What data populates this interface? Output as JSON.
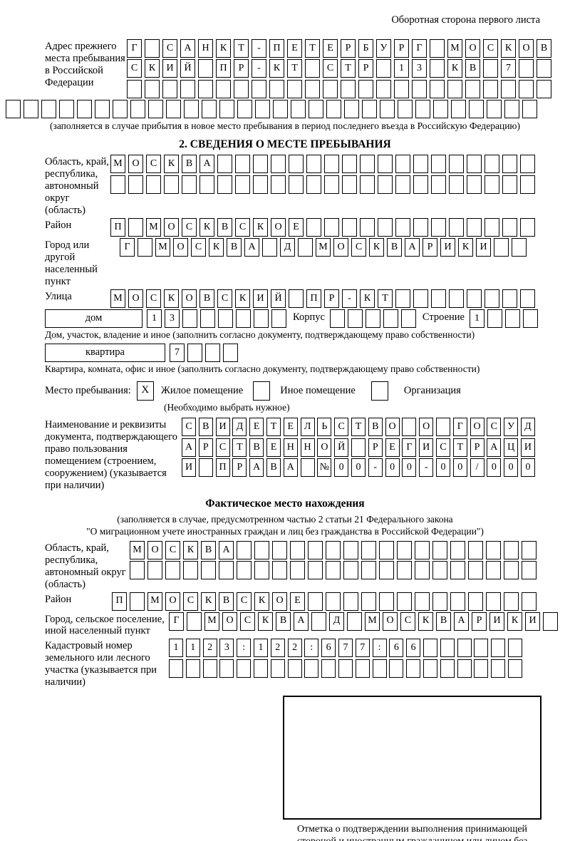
{
  "header": {
    "corner_note": "Оборотная сторона первого листа"
  },
  "prev_address": {
    "label": "Адрес прежнего места пребывания в Российской Федерации",
    "row1": {
      "text": "Г САНКТ-ПЕТЕРБУРГ МОСКОВ",
      "cells": 24
    },
    "row2": {
      "text": "СКИЙ ПР-КТ СТР 13 КВ 7",
      "cells": 24
    },
    "row3": {
      "text": "",
      "cells": 24
    },
    "row4": {
      "text": "",
      "cells": 30
    },
    "note": "(заполняется в случае прибытия в новое место пребывания в период последнего въезда в Российскую Федерацию)"
  },
  "section2": {
    "title": "2. СВЕДЕНИЯ О МЕСТЕ ПРЕБЫВАНИЯ",
    "region": {
      "label": "Область, край, республика, автономный округ (область)",
      "row1": {
        "text": "МОСКВА",
        "cells": 24
      },
      "row2": {
        "text": "",
        "cells": 24
      }
    },
    "district": {
      "label": "Район",
      "row": {
        "text": "П МОСКВСКОЕ",
        "cells": 24
      }
    },
    "city": {
      "label": "Город или другой населенный пункт",
      "row": {
        "text": "Г МОСКВА Д МОСКВАРИКИ",
        "cells": 23
      }
    },
    "street": {
      "label": "Улица",
      "row": {
        "text": "МОСКОВСКИЙ ПР-КТ",
        "cells": 24
      }
    },
    "house": {
      "box_label": "дом",
      "row": {
        "text": "13",
        "cells": 8
      },
      "korpus_label": "Корпус",
      "korpus_row": {
        "text": "",
        "cells": 5
      },
      "stroenie_label": "Строение",
      "stroenie_row": {
        "text": "1",
        "cells": 4
      }
    },
    "house_note": "Дом, участок, владение и иное (заполнить согласно документу, подтверждающему право собственности)",
    "flat": {
      "box_label": "квартира",
      "row": {
        "text": "7",
        "cells": 4
      }
    },
    "flat_note": "Квартира, комната, офис и иное (заполнить согласно документу, подтверждающему право собственности)",
    "stay_type": {
      "label": "Место пребывания:",
      "options": [
        {
          "label": "Жилое помещение",
          "mark": "X"
        },
        {
          "label": "Иное помещение",
          "mark": ""
        },
        {
          "label": "Организация",
          "mark": ""
        }
      ],
      "note": "(Необходимо выбрать нужное)"
    },
    "document": {
      "label": "Наименование и реквизиты документа, подтверждающего право пользования помещением (строением, сооружением) (указывается при наличии)",
      "row1": {
        "text": "СВИДЕТЕЛЬСТВО О ГОСУД",
        "cells": 21
      },
      "row2": {
        "text": "АРСТВЕННОЙ РЕГИСТРАЦИ",
        "cells": 21
      },
      "row3": {
        "text": "И ПРАВА №00-00-00/000",
        "cells": 21
      }
    }
  },
  "actual_location": {
    "title": "Фактическое место нахождения",
    "note_line1": "(заполняется в случае, предусмотренном частью 2 статьи 21 Федерального закона",
    "note_line2": "\"О миграционном учете иностранных граждан и лиц без гражданства в Российской Федерации\")",
    "region": {
      "label": "Область, край, республика, автономный округ (область)",
      "row1": {
        "text": "МОСКВА",
        "cells": 23
      },
      "row2": {
        "text": "",
        "cells": 23
      }
    },
    "district": {
      "label": "Район",
      "row": {
        "text": "П МОСКВСКОЕ",
        "cells": 24
      }
    },
    "city": {
      "label": "Город, сельское поселение, иной населенный пункт",
      "row": {
        "text": "Г МОСКВА Д МОСКВАРИКИ",
        "cells": 22
      }
    },
    "cadastre": {
      "label": "Кадастровый номер земельного или лесного участка (указывается при наличии)",
      "row1": {
        "text": "1123:122:677:66",
        "cells": 21
      },
      "row2": {
        "text": "",
        "cells": 21
      }
    },
    "stamp_caption": "Отметка о подтверждении выполнения принимающей стороной и иностранным гражданином или лицом без гражданства действий, необходимых для его постановки на учет по месту пребывания"
  }
}
